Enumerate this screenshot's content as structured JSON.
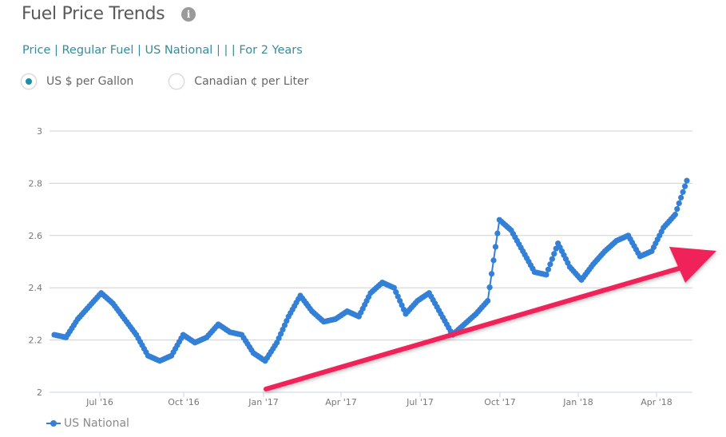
{
  "header": {
    "title": "Fuel Price Trends",
    "info_icon": "info-icon",
    "breadcrumb": "Price | Regular Fuel | US National | | | For 2 Years"
  },
  "units": {
    "options": [
      {
        "label": "US $ per Gallon",
        "selected": true
      },
      {
        "label": "Canadian ¢ per Liter",
        "selected": false
      }
    ]
  },
  "colors": {
    "series": "#3380d6",
    "accent": "#1a8fa8",
    "arrow": "#f0205a",
    "grid": "#d0d0d0"
  },
  "legend": {
    "label": "US National"
  },
  "chart_data": {
    "type": "line",
    "title": "Fuel Price Trends",
    "xlabel": "",
    "ylabel": "US $ per Gallon",
    "ylim": [
      2,
      3
    ],
    "yticks": [
      "2",
      "2.2",
      "2.4",
      "2.6",
      "2.8",
      "3"
    ],
    "xticks": [
      "Jul '16",
      "Oct '16",
      "Jan '17",
      "Apr '17",
      "Jul '17",
      "Oct '17",
      "Jan '18",
      "Apr '18"
    ],
    "grid": true,
    "legend_position": "bottom-left",
    "series": [
      {
        "name": "US National",
        "x": [
          "May '16",
          "May '16",
          "Jun '16",
          "Jun '16",
          "Jun '16",
          "Jul '16",
          "Jul '16",
          "Aug '16",
          "Aug '16",
          "Sep '16",
          "Sep '16",
          "Sep '16",
          "Oct '16",
          "Oct '16",
          "Oct '16",
          "Nov '16",
          "Nov '16",
          "Dec '16",
          "Dec '16",
          "Dec '16",
          "Jan '17",
          "Jan '17",
          "Feb '17",
          "Feb '17",
          "Mar '17",
          "Mar '17",
          "Apr '17",
          "Apr '17",
          "May '17",
          "May '17",
          "May '17",
          "Jun '17",
          "Jun '17",
          "Jul '17",
          "Jul '17",
          "Aug '17",
          "Aug '17",
          "Aug '17",
          "Sep '17",
          "Sep '17",
          "Oct '17",
          "Oct '17",
          "Nov '17",
          "Nov '17",
          "Dec '17",
          "Dec '17",
          "Jan '18",
          "Jan '18",
          "Feb '18",
          "Feb '18",
          "Mar '18",
          "Mar '18",
          "Apr '18",
          "Apr '18",
          "May '18"
        ],
        "values": [
          2.22,
          2.21,
          2.28,
          2.33,
          2.38,
          2.34,
          2.28,
          2.22,
          2.14,
          2.12,
          2.14,
          2.22,
          2.19,
          2.21,
          2.26,
          2.23,
          2.22,
          2.15,
          2.12,
          2.19,
          2.29,
          2.37,
          2.31,
          2.27,
          2.28,
          2.31,
          2.29,
          2.38,
          2.42,
          2.4,
          2.3,
          2.35,
          2.38,
          2.3,
          2.22,
          2.26,
          2.3,
          2.35,
          2.66,
          2.62,
          2.54,
          2.46,
          2.45,
          2.57,
          2.48,
          2.43,
          2.49,
          2.54,
          2.58,
          2.6,
          2.52,
          2.54,
          2.63,
          2.68,
          2.81
        ]
      }
    ],
    "annotation": "Red upward trend arrow from Jan '17 toward May '18"
  }
}
